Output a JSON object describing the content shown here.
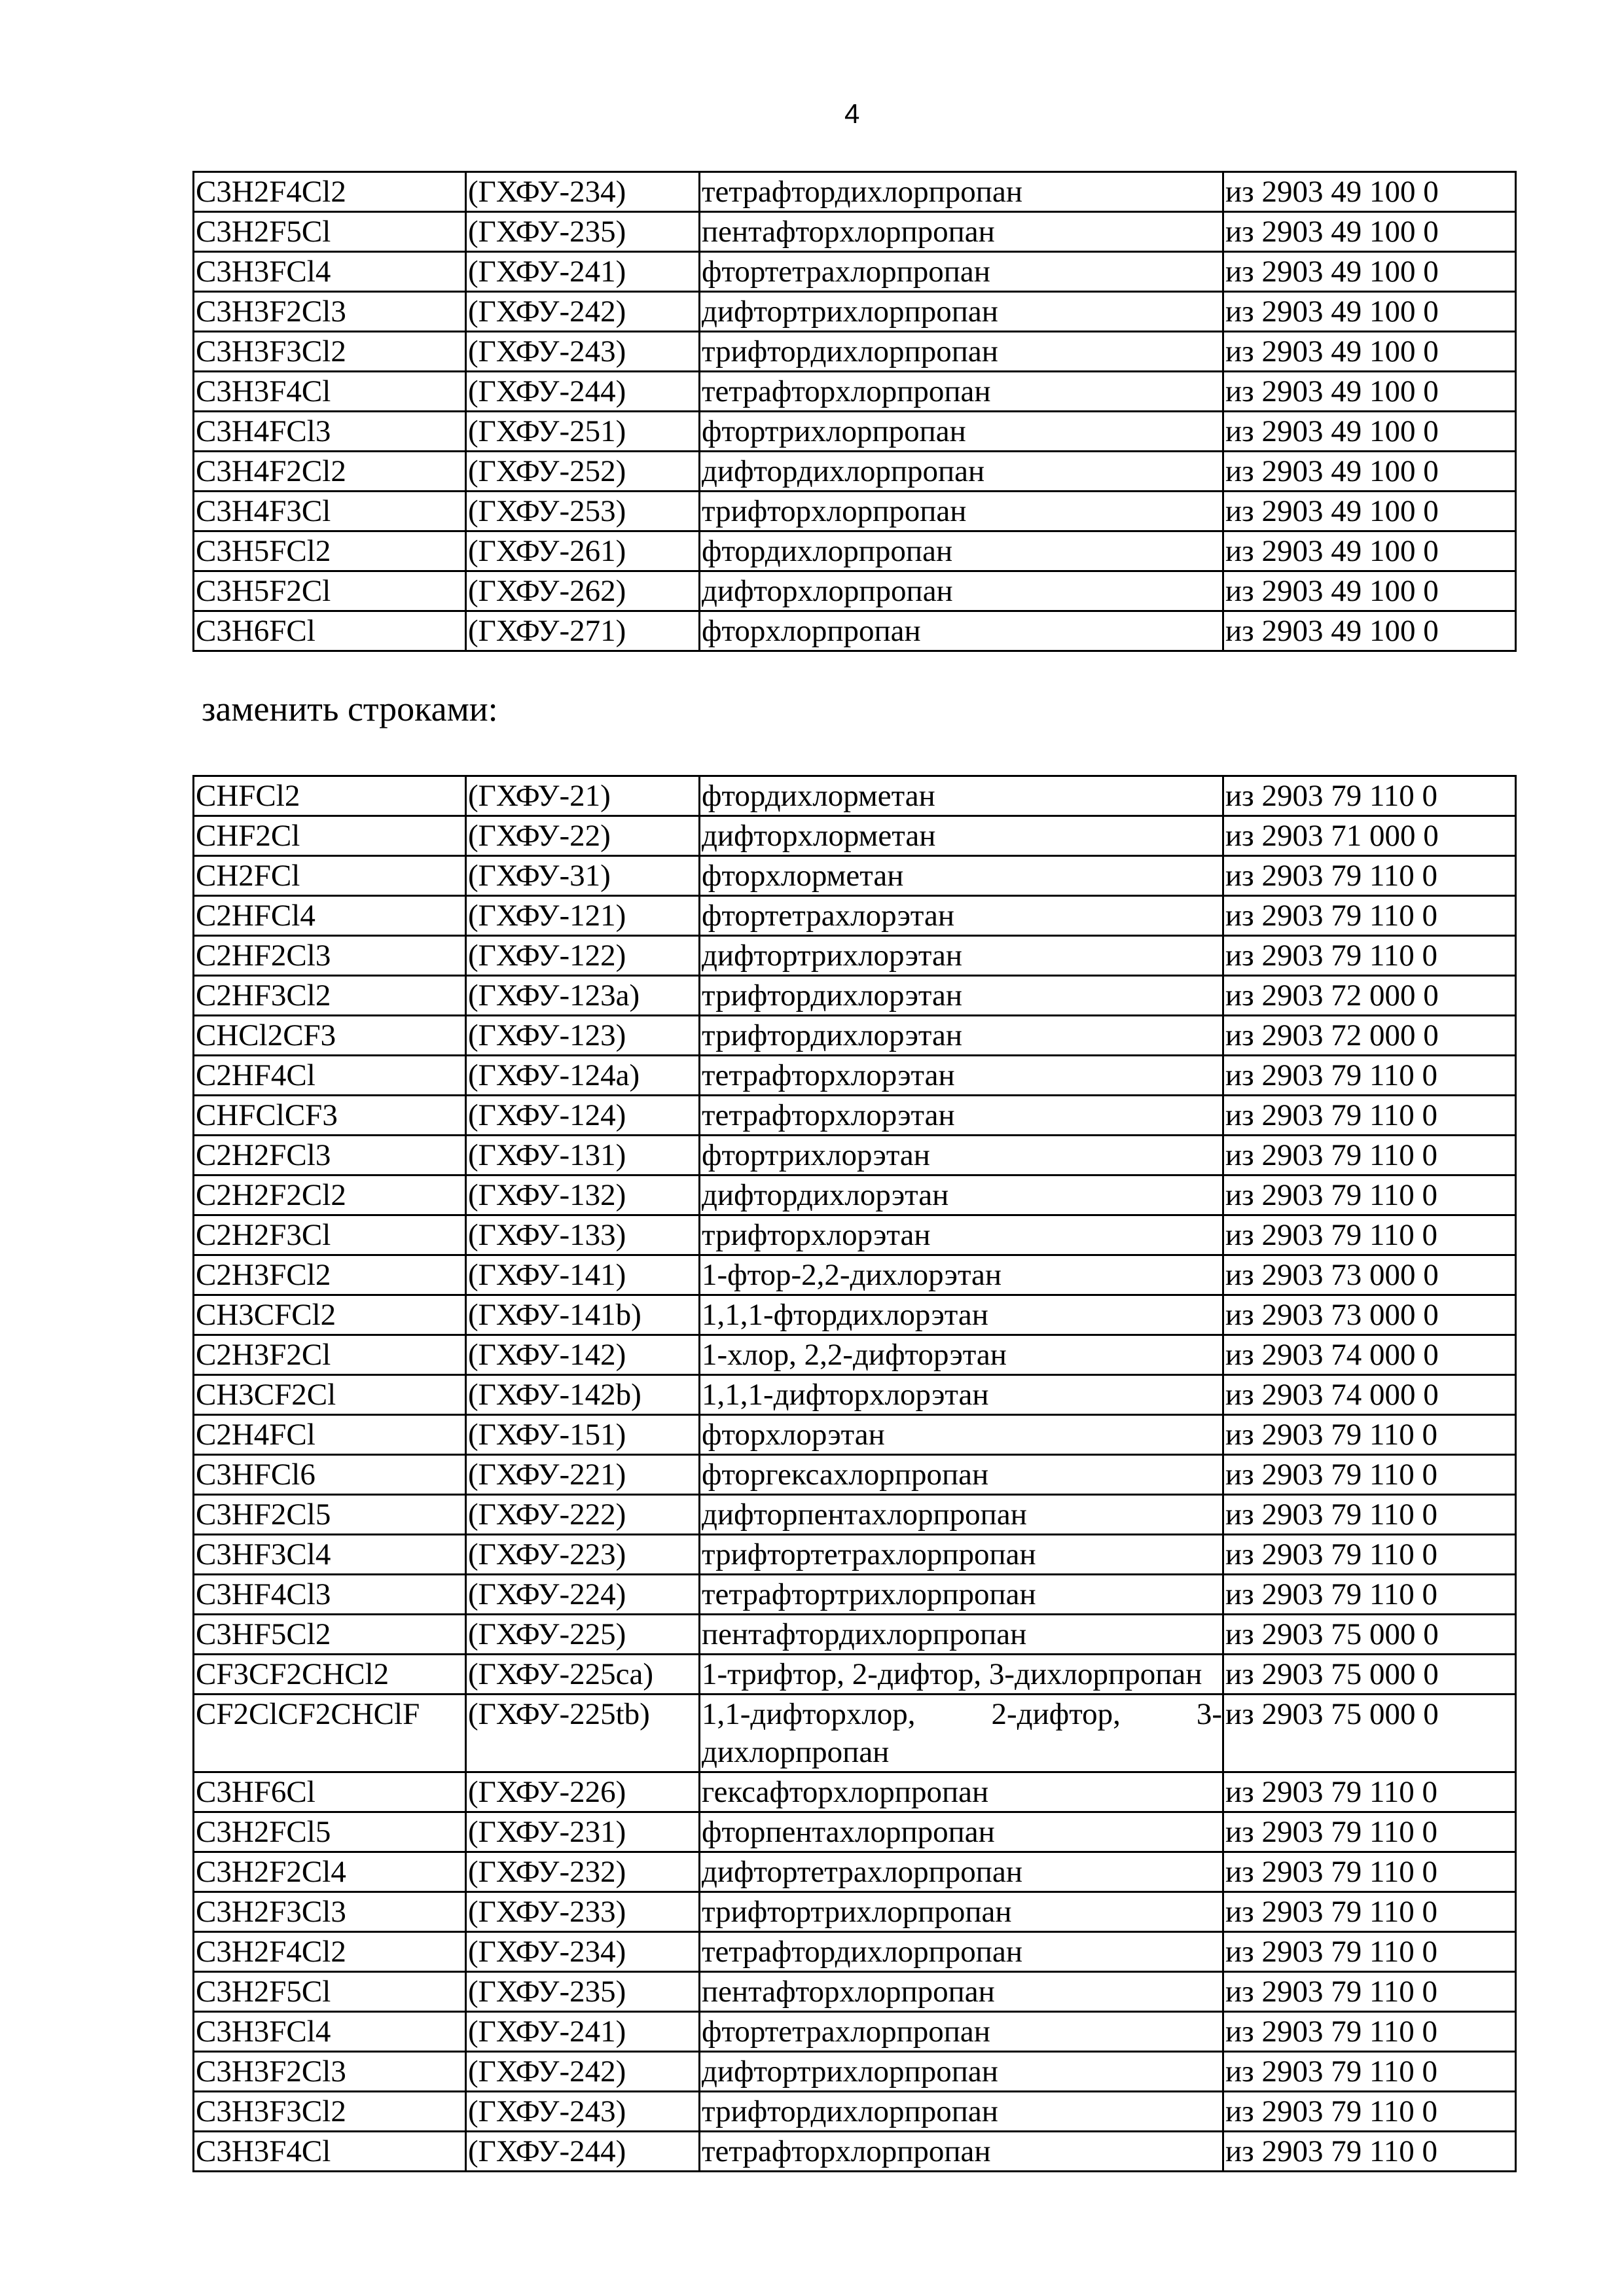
{
  "page_number": "4",
  "intro_text": "заменить строками:",
  "table_old": [
    [
      "C3H2F4Cl2",
      "(ГХФУ-234)",
      "тетрафтордихлорпропан",
      "из 2903 49 100 0"
    ],
    [
      "C3H2F5Cl",
      "(ГХФУ-235)",
      "пентафторхлорпропан",
      "из 2903 49 100 0"
    ],
    [
      "C3H3FCl4",
      "(ГХФУ-241)",
      "фтортетрахлорпропан",
      "из 2903 49 100 0"
    ],
    [
      "C3H3F2Cl3",
      "(ГХФУ-242)",
      "дифтортрихлорпропан",
      "из 2903 49 100 0"
    ],
    [
      "C3H3F3Cl2",
      "(ГХФУ-243)",
      "трифтордихлорпропан",
      "из 2903 49 100 0"
    ],
    [
      "C3H3F4Cl",
      "(ГХФУ-244)",
      "тетрафторхлорпропан",
      "из 2903 49 100 0"
    ],
    [
      "C3H4FCl3",
      "(ГХФУ-251)",
      "фтортрихлорпропан",
      "из 2903 49 100 0"
    ],
    [
      "C3H4F2Cl2",
      "(ГХФУ-252)",
      "дифтордихлорпропан",
      "из 2903 49 100 0"
    ],
    [
      "C3H4F3Cl",
      "(ГХФУ-253)",
      "трифторхлорпропан",
      "из 2903 49 100 0"
    ],
    [
      "C3H5FCl2",
      "(ГХФУ-261)",
      "фтордихлорпропан",
      "из 2903 49 100 0"
    ],
    [
      "C3H5F2Cl",
      "(ГХФУ-262)",
      "дифторхлорпропан",
      "из 2903 49 100 0"
    ],
    [
      "C3H6FCl",
      "(ГХФУ-271)",
      "фторхлорпропан",
      "из 2903 49 100 0"
    ]
  ],
  "table_new": [
    [
      "CHFCl2",
      "(ГХФУ-21)",
      "фтордихлорметан",
      "из 2903 79 110 0"
    ],
    [
      "CHF2Cl",
      "(ГХФУ-22)",
      "дифторхлорметан",
      "из 2903 71 000 0"
    ],
    [
      "CH2FCl",
      "(ГХФУ-31)",
      "фторхлорметан",
      "из 2903 79 110 0"
    ],
    [
      "C2HFCl4",
      "(ГХФУ-121)",
      "фтортетрахлорэтан",
      "из 2903 79 110 0"
    ],
    [
      "C2HF2Cl3",
      "(ГХФУ-122)",
      "дифтортрихлорэтан",
      "из 2903 79 110 0"
    ],
    [
      "C2HF3Cl2",
      "(ГХФУ-123а)",
      "трифтордихлорэтан",
      "из 2903 72 000 0"
    ],
    [
      "CHCl2CF3",
      "(ГХФУ-123)",
      "трифтордихлорэтан",
      "из 2903 72 000 0"
    ],
    [
      "C2HF4Cl",
      "(ГХФУ-124а)",
      "тетрафторхлорэтан",
      "из 2903 79 110 0"
    ],
    [
      "CHFClCF3",
      "(ГХФУ-124)",
      "тетрафторхлорэтан",
      "из 2903 79 110 0"
    ],
    [
      "C2H2FCl3",
      "(ГХФУ-131)",
      "фтортрихлорэтан",
      "из 2903 79 110 0"
    ],
    [
      "C2H2F2Cl2",
      "(ГХФУ-132)",
      "дифтордихлорэтан",
      "из 2903 79 110 0"
    ],
    [
      "C2H2F3Cl",
      "(ГХФУ-133)",
      "трифторхлорэтан",
      "из 2903 79 110 0"
    ],
    [
      "C2H3FCl2",
      "(ГХФУ-141)",
      "1-фтор-2,2-дихлорэтан",
      "из 2903 73 000 0"
    ],
    [
      "CH3CFCl2",
      "(ГХФУ-141b)",
      "1,1,1-фтордихлорэтан",
      "из 2903 73 000 0"
    ],
    [
      "C2H3F2Cl",
      "(ГХФУ-142)",
      "1-хлор, 2,2-дифторэтан",
      "из 2903 74 000 0"
    ],
    [
      "CH3CF2Cl",
      "(ГХФУ-142b)",
      "1,1,1-дифторхлорэтан",
      "из 2903 74 000 0"
    ],
    [
      "C2H4FCl",
      "(ГХФУ-151)",
      "фторхлорэтан",
      "из 2903 79 110 0"
    ],
    [
      "C3HFCl6",
      "(ГХФУ-221)",
      "фторгексахлорпропан",
      "из 2903 79 110 0"
    ],
    [
      "C3HF2Cl5",
      "(ГХФУ-222)",
      "дифторпентахлорпропан",
      "из 2903 79 110 0"
    ],
    [
      "C3HF3Cl4",
      "(ГХФУ-223)",
      "трифтортетрахлорпропан",
      "из 2903 79 110 0"
    ],
    [
      "C3HF4Cl3",
      "(ГХФУ-224)",
      "тетрафтортрихлорпропан",
      "из 2903 79 110 0"
    ],
    [
      "C3HF5Cl2",
      "(ГХФУ-225)",
      "пентафтордихлорпропан",
      "из 2903 75 000 0"
    ],
    [
      "CF3CF2CHCl2",
      "(ГХФУ-225ca)",
      "1-трифтор, 2-дифтор, 3-дихлорпропан",
      "из 2903 75 000 0"
    ],
    [
      "CF2ClCF2CHClF",
      "(ГХФУ-225tb)",
      "1,1-дифторхлор, 2-дифтор, 3-дихлорпропан",
      "из 2903 75 000 0"
    ],
    [
      "C3HF6Cl",
      "(ГХФУ-226)",
      "гексафторхлорпропан",
      "из 2903 79 110 0"
    ],
    [
      "C3H2FCl5",
      "(ГХФУ-231)",
      "фторпентахлорпропан",
      "из 2903 79 110 0"
    ],
    [
      "C3H2F2Cl4",
      "(ГХФУ-232)",
      "дифтортетрахлорпропан",
      "из 2903 79 110 0"
    ],
    [
      "C3H2F3Cl3",
      "(ГХФУ-233)",
      "трифтортрихлорпропан",
      "из 2903 79 110 0"
    ],
    [
      "C3H2F4Cl2",
      "(ГХФУ-234)",
      "тетрафтордихлорпропан",
      "из 2903 79 110 0"
    ],
    [
      "C3H2F5Cl",
      "(ГХФУ-235)",
      "пентафторхлорпропан",
      "из 2903 79 110 0"
    ],
    [
      "C3H3FCl4",
      "(ГХФУ-241)",
      "фтортетрахлорпропан",
      "из 2903 79 110 0"
    ],
    [
      "C3H3F2Cl3",
      "(ГХФУ-242)",
      "дифтортрихлорпропан",
      "из 2903 79 110 0"
    ],
    [
      "C3H3F3Cl2",
      "(ГХФУ-243)",
      "трифтордихлорпропан",
      "из 2903 79 110 0"
    ],
    [
      "C3H3F4Cl",
      "(ГХФУ-244)",
      "тетрафторхлорпропан",
      "из 2903 79 110 0"
    ]
  ]
}
